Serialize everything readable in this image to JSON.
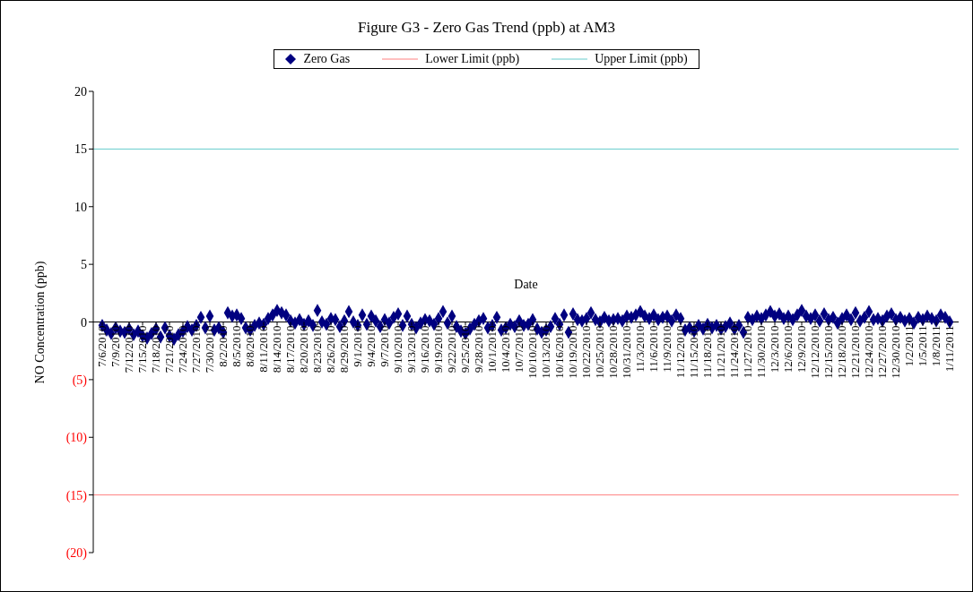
{
  "chart_data": {
    "type": "scatter",
    "title": "Figure G3 - Zero Gas Trend (ppb) at AM3",
    "xlabel": "Date",
    "ylabel": "NO Concentration (ppb)",
    "legend": "top",
    "grid": false,
    "xlim": [
      "2010-07-04",
      "2011-01-13"
    ],
    "ylim": [
      -20,
      20
    ],
    "yticks": [
      {
        "value": -20,
        "label": "(20)"
      },
      {
        "value": -15,
        "label": "(15)"
      },
      {
        "value": -10,
        "label": "(10)"
      },
      {
        "value": -5,
        "label": "(5)"
      },
      0,
      5,
      10,
      15,
      20
    ],
    "xticks": [
      {
        "value": "2010-07-06",
        "label": "7/6/2010"
      },
      {
        "value": "2010-07-09",
        "label": "7/9/2010"
      },
      {
        "value": "2010-07-12",
        "label": "7/12/2010"
      },
      {
        "value": "2010-07-15",
        "label": "7/15/2010"
      },
      {
        "value": "2010-07-18",
        "label": "7/18/2010"
      },
      {
        "value": "2010-07-21",
        "label": "7/21/2010"
      },
      {
        "value": "2010-07-24",
        "label": "7/24/2010"
      },
      {
        "value": "2010-07-27",
        "label": "7/27/2010"
      },
      {
        "value": "2010-07-30",
        "label": "7/30/2010"
      },
      {
        "value": "2010-08-02",
        "label": "8/2/2010"
      },
      {
        "value": "2010-08-05",
        "label": "8/5/2010"
      },
      {
        "value": "2010-08-08",
        "label": "8/8/2010"
      },
      {
        "value": "2010-08-11",
        "label": "8/11/2010"
      },
      {
        "value": "2010-08-14",
        "label": "8/14/2010"
      },
      {
        "value": "2010-08-17",
        "label": "8/17/2010"
      },
      {
        "value": "2010-08-20",
        "label": "8/20/2010"
      },
      {
        "value": "2010-08-23",
        "label": "8/23/2010"
      },
      {
        "value": "2010-08-26",
        "label": "8/26/2010"
      },
      {
        "value": "2010-08-29",
        "label": "8/29/2010"
      },
      {
        "value": "2010-09-01",
        "label": "9/1/2010"
      },
      {
        "value": "2010-09-04",
        "label": "9/4/2010"
      },
      {
        "value": "2010-09-07",
        "label": "9/7/2010"
      },
      {
        "value": "2010-09-10",
        "label": "9/10/2010"
      },
      {
        "value": "2010-09-13",
        "label": "9/13/2010"
      },
      {
        "value": "2010-09-16",
        "label": "9/16/2010"
      },
      {
        "value": "2010-09-19",
        "label": "9/19/2010"
      },
      {
        "value": "2010-09-22",
        "label": "9/22/2010"
      },
      {
        "value": "2010-09-25",
        "label": "9/25/2010"
      },
      {
        "value": "2010-09-28",
        "label": "9/28/2010"
      },
      {
        "value": "2010-10-01",
        "label": "10/1/2010"
      },
      {
        "value": "2010-10-04",
        "label": "10/4/2010"
      },
      {
        "value": "2010-10-07",
        "label": "10/7/2010"
      },
      {
        "value": "2010-10-10",
        "label": "10/10/2010"
      },
      {
        "value": "2010-10-13",
        "label": "10/13/2010"
      },
      {
        "value": "2010-10-16",
        "label": "10/16/2010"
      },
      {
        "value": "2010-10-19",
        "label": "10/19/2010"
      },
      {
        "value": "2010-10-22",
        "label": "10/22/2010"
      },
      {
        "value": "2010-10-25",
        "label": "10/25/2010"
      },
      {
        "value": "2010-10-28",
        "label": "10/28/2010"
      },
      {
        "value": "2010-10-31",
        "label": "10/31/2010"
      },
      {
        "value": "2010-11-03",
        "label": "11/3/2010"
      },
      {
        "value": "2010-11-06",
        "label": "11/6/2010"
      },
      {
        "value": "2010-11-09",
        "label": "11/9/2010"
      },
      {
        "value": "2010-11-12",
        "label": "11/12/2010"
      },
      {
        "value": "2010-11-15",
        "label": "11/15/2010"
      },
      {
        "value": "2010-11-18",
        "label": "11/18/2010"
      },
      {
        "value": "2010-11-21",
        "label": "11/21/2010"
      },
      {
        "value": "2010-11-24",
        "label": "11/24/2010"
      },
      {
        "value": "2010-11-27",
        "label": "11/27/2010"
      },
      {
        "value": "2010-11-30",
        "label": "11/30/2010"
      },
      {
        "value": "2010-12-03",
        "label": "12/3/2010"
      },
      {
        "value": "2010-12-06",
        "label": "12/6/2010"
      },
      {
        "value": "2010-12-09",
        "label": "12/9/2010"
      },
      {
        "value": "2010-12-12",
        "label": "12/12/2010"
      },
      {
        "value": "2010-12-15",
        "label": "12/15/2010"
      },
      {
        "value": "2010-12-18",
        "label": "12/18/2010"
      },
      {
        "value": "2010-12-21",
        "label": "12/21/2010"
      },
      {
        "value": "2010-12-24",
        "label": "12/24/2010"
      },
      {
        "value": "2010-12-27",
        "label": "12/27/2010"
      },
      {
        "value": "2010-12-30",
        "label": "12/30/2010"
      },
      {
        "value": "2011-01-02",
        "label": "1/2/2011"
      },
      {
        "value": "2011-01-05",
        "label": "1/5/2011"
      },
      {
        "value": "2011-01-08",
        "label": "1/8/2011"
      },
      {
        "value": "2011-01-11",
        "label": "1/11/2011"
      }
    ],
    "x": [
      "2010-07-06",
      "2010-07-07",
      "2010-07-08",
      "2010-07-09",
      "2010-07-10",
      "2010-07-11",
      "2010-07-12",
      "2010-07-13",
      "2010-07-14",
      "2010-07-15",
      "2010-07-16",
      "2010-07-17",
      "2010-07-18",
      "2010-07-19",
      "2010-07-20",
      "2010-07-21",
      "2010-07-22",
      "2010-07-23",
      "2010-07-24",
      "2010-07-25",
      "2010-07-26",
      "2010-07-27",
      "2010-07-28",
      "2010-07-29",
      "2010-07-30",
      "2010-07-31",
      "2010-08-01",
      "2010-08-02",
      "2010-08-03",
      "2010-08-04",
      "2010-08-05",
      "2010-08-06",
      "2010-08-07",
      "2010-08-08",
      "2010-08-09",
      "2010-08-10",
      "2010-08-11",
      "2010-08-12",
      "2010-08-13",
      "2010-08-14",
      "2010-08-15",
      "2010-08-16",
      "2010-08-17",
      "2010-08-18",
      "2010-08-19",
      "2010-08-20",
      "2010-08-21",
      "2010-08-22",
      "2010-08-23",
      "2010-08-24",
      "2010-08-25",
      "2010-08-26",
      "2010-08-27",
      "2010-08-28",
      "2010-08-29",
      "2010-08-30",
      "2010-08-31",
      "2010-09-01",
      "2010-09-02",
      "2010-09-03",
      "2010-09-04",
      "2010-09-05",
      "2010-09-06",
      "2010-09-07",
      "2010-09-08",
      "2010-09-09",
      "2010-09-10",
      "2010-09-11",
      "2010-09-12",
      "2010-09-13",
      "2010-09-14",
      "2010-09-15",
      "2010-09-16",
      "2010-09-17",
      "2010-09-18",
      "2010-09-19",
      "2010-09-20",
      "2010-09-21",
      "2010-09-22",
      "2010-09-23",
      "2010-09-24",
      "2010-09-25",
      "2010-09-26",
      "2010-09-27",
      "2010-09-28",
      "2010-09-29",
      "2010-09-30",
      "2010-10-01",
      "2010-10-02",
      "2010-10-03",
      "2010-10-04",
      "2010-10-05",
      "2010-10-06",
      "2010-10-07",
      "2010-10-08",
      "2010-10-09",
      "2010-10-10",
      "2010-10-11",
      "2010-10-12",
      "2010-10-13",
      "2010-10-14",
      "2010-10-15",
      "2010-10-16",
      "2010-10-17",
      "2010-10-18",
      "2010-10-19",
      "2010-10-20",
      "2010-10-21",
      "2010-10-22",
      "2010-10-23",
      "2010-10-24",
      "2010-10-25",
      "2010-10-26",
      "2010-10-27",
      "2010-10-28",
      "2010-10-29",
      "2010-10-30",
      "2010-10-31",
      "2010-11-01",
      "2010-11-02",
      "2010-11-03",
      "2010-11-04",
      "2010-11-05",
      "2010-11-06",
      "2010-11-07",
      "2010-11-08",
      "2010-11-09",
      "2010-11-10",
      "2010-11-11",
      "2010-11-12",
      "2010-11-13",
      "2010-11-14",
      "2010-11-15",
      "2010-11-16",
      "2010-11-17",
      "2010-11-18",
      "2010-11-19",
      "2010-11-20",
      "2010-11-21",
      "2010-11-22",
      "2010-11-23",
      "2010-11-24",
      "2010-11-25",
      "2010-11-26",
      "2010-11-27",
      "2010-11-28",
      "2010-11-29",
      "2010-11-30",
      "2010-12-01",
      "2010-12-02",
      "2010-12-03",
      "2010-12-04",
      "2010-12-05",
      "2010-12-06",
      "2010-12-07",
      "2010-12-08",
      "2010-12-09",
      "2010-12-10",
      "2010-12-11",
      "2010-12-12",
      "2010-12-13",
      "2010-12-14",
      "2010-12-15",
      "2010-12-16",
      "2010-12-17",
      "2010-12-18",
      "2010-12-19",
      "2010-12-20",
      "2010-12-21",
      "2010-12-22",
      "2010-12-23",
      "2010-12-24",
      "2010-12-25",
      "2010-12-26",
      "2010-12-27",
      "2010-12-28",
      "2010-12-29",
      "2010-12-30",
      "2010-12-31",
      "2011-01-01",
      "2011-01-02",
      "2011-01-03",
      "2011-01-04",
      "2011-01-05",
      "2011-01-06",
      "2011-01-07",
      "2011-01-08",
      "2011-01-09",
      "2011-01-10",
      "2011-01-11"
    ],
    "series": [
      {
        "name": "Zero Gas",
        "marker": "diamond",
        "color": "#000080",
        "values": [
          -0.3,
          -0.7,
          -1.0,
          -0.5,
          -0.8,
          -0.9,
          -0.6,
          -1.1,
          -0.8,
          -1.2,
          -1.4,
          -1.0,
          -0.6,
          -1.3,
          -0.5,
          -1.2,
          -1.5,
          -1.1,
          -0.8,
          -0.4,
          -0.7,
          -0.3,
          0.4,
          -0.5,
          0.5,
          -0.7,
          -0.5,
          -0.9,
          0.8,
          0.5,
          0.6,
          0.3,
          -0.5,
          -0.7,
          -0.3,
          -0.1,
          -0.2,
          0.3,
          0.6,
          1.0,
          0.8,
          0.6,
          0.1,
          -0.1,
          0.2,
          -0.2,
          0.1,
          -0.3,
          1.0,
          0.0,
          -0.2,
          0.3,
          0.2,
          -0.4,
          0.1,
          0.9,
          0.0,
          -0.3,
          0.6,
          -0.2,
          0.5,
          0.1,
          -0.4,
          0.2,
          -0.1,
          0.4,
          0.7,
          -0.3,
          0.5,
          -0.2,
          -0.5,
          -0.1,
          0.2,
          0.1,
          -0.2,
          0.3,
          0.9,
          -0.1,
          0.5,
          -0.4,
          -0.8,
          -1.0,
          -0.6,
          -0.2,
          0.1,
          0.3,
          -0.5,
          -0.3,
          0.4,
          -0.7,
          -0.5,
          -0.2,
          -0.4,
          0.1,
          -0.3,
          -0.2,
          0.2,
          -0.6,
          -0.9,
          -0.7,
          -0.4,
          0.3,
          -0.2,
          0.6,
          -0.9,
          0.7,
          0.2,
          0.1,
          0.3,
          0.8,
          0.2,
          0.0,
          0.4,
          0.1,
          0.2,
          0.3,
          0.1,
          0.5,
          0.4,
          0.6,
          0.9,
          0.5,
          0.3,
          0.6,
          0.2,
          0.4,
          0.5,
          0.1,
          0.6,
          0.3,
          -0.7,
          -0.5,
          -0.8,
          -0.3,
          -0.6,
          -0.2,
          -0.5,
          -0.3,
          -0.6,
          -0.4,
          -0.1,
          -0.6,
          -0.3,
          -0.9,
          0.4,
          0.2,
          0.5,
          0.3,
          0.6,
          0.9,
          0.5,
          0.7,
          0.3,
          0.5,
          0.2,
          0.6,
          1.0,
          0.5,
          0.3,
          0.6,
          0.1,
          0.7,
          0.2,
          0.4,
          -0.1,
          0.3,
          0.6,
          0.2,
          0.8,
          0.1,
          0.4,
          0.9,
          0.2,
          0.3,
          0.1,
          0.5,
          0.7,
          0.2,
          0.4,
          0.1,
          0.3,
          -0.1,
          0.4,
          0.2,
          0.5,
          0.3,
          0.1,
          0.6,
          0.4,
          0.0
        ]
      },
      {
        "name": "Lower Limit (ppb)",
        "type": "line",
        "marker": "none",
        "color": "#ff8080",
        "x": [
          "2010-07-04",
          "2011-01-13"
        ],
        "values": [
          -15,
          -15
        ]
      },
      {
        "name": "Upper Limit (ppb)",
        "type": "line",
        "marker": "none",
        "color": "#66cccc",
        "x": [
          "2010-07-04",
          "2011-01-13"
        ],
        "values": [
          15,
          15
        ]
      }
    ]
  }
}
